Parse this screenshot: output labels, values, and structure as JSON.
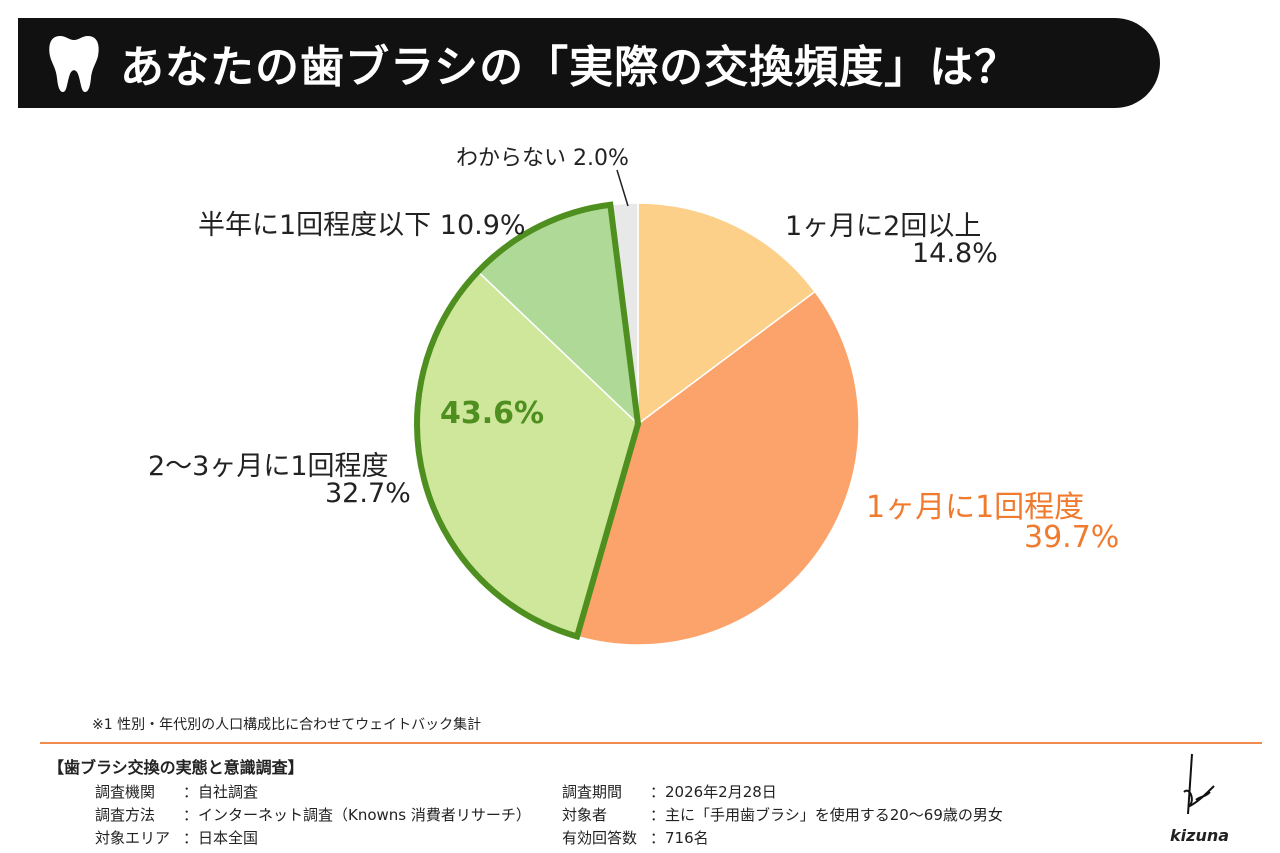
{
  "header": {
    "title": "あなたの歯ブラシの「実際の交換頻度」は？",
    "icon": "tooth-icon"
  },
  "chart_data": {
    "type": "pie",
    "start": "top",
    "direction": "clockwise",
    "categories": [
      "1ヶ月に2回以上",
      "1ヶ月に1回程度",
      "2〜3ヶ月に1回程度",
      "半年に1回程度以下",
      "わからない"
    ],
    "values": [
      14.8,
      39.7,
      32.7,
      10.9,
      2.0
    ],
    "value_labels": [
      "14.8%",
      "39.7%",
      "32.7%",
      "10.9%",
      "2.0%"
    ],
    "colors": [
      "#FDD08A",
      "#FBA36A",
      "#CEE79B",
      "#AFD996",
      "#E8E8E8"
    ],
    "highlight": {
      "label": "43.6%",
      "group": [
        "2〜3ヶ月に1回程度",
        "半年に1回程度以下"
      ],
      "color": "#4E8F1F"
    },
    "emphasis_color": "#F07B2E"
  },
  "footnote": "※1 性別・年代別の人口構成比に合わせてウェイトバック集計",
  "survey": {
    "title": "【歯ブラシ交換の実態と意識調査】",
    "left": [
      {
        "k": "調査機関",
        "v": "：自社調査"
      },
      {
        "k": "調査方法",
        "v": "：インターネット調査（Knowns 消費者リサーチ）"
      },
      {
        "k": "対象エリア",
        "v": "：日本全国"
      }
    ],
    "right": [
      {
        "k": "調査期間",
        "v": "：2026年2月28日"
      },
      {
        "k": "対象者",
        "v": "：主に「手用歯ブラシ」を使用する20〜69歳の男女"
      },
      {
        "k": "有効回答数",
        "v": "：716名"
      }
    ]
  },
  "brand": "kizuna"
}
